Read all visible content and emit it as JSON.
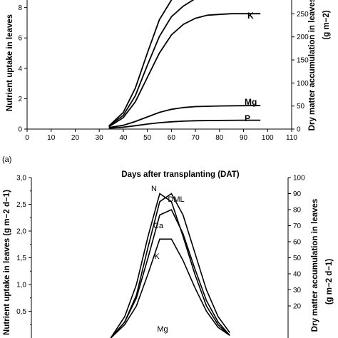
{
  "chart_data": [
    {
      "panel": "a",
      "type": "line",
      "panel_label": "(a)",
      "xlabel": "Days after transplanting (DAT)",
      "ylabel_left": "Nutrient uptake in leaves",
      "ylabel_right": "Dry matter accumulation in leaves",
      "ylabel_right_unit": "(g m−2)",
      "xlim": [
        0,
        110
      ],
      "ylim_left": [
        0,
        8.5
      ],
      "ylim_right": [
        0,
        280
      ],
      "x_ticks": [
        "0",
        "10",
        "20",
        "30",
        "40",
        "50",
        "60",
        "70",
        "80",
        "90",
        "100",
        "110"
      ],
      "y_ticks_left": [
        "0",
        "2",
        "4",
        "6",
        "8"
      ],
      "y_ticks_right": [
        "0",
        "50",
        "100",
        "150",
        "200",
        "250"
      ],
      "series": [
        {
          "label": "",
          "x": [
            34,
            40,
            45,
            50,
            55,
            60,
            62
          ],
          "y": [
            0.2,
            1.1,
            2.7,
            5.0,
            7.2,
            8.5,
            9.0
          ]
        },
        {
          "label": "",
          "x": [
            34,
            40,
            45,
            50,
            55,
            60,
            65,
            70,
            72
          ],
          "y": [
            0.2,
            0.9,
            2.2,
            4.2,
            6.1,
            7.4,
            8.1,
            8.6,
            8.9
          ]
        },
        {
          "label": "K",
          "x": [
            34,
            40,
            45,
            50,
            55,
            60,
            65,
            70,
            75,
            80,
            85,
            90,
            97
          ],
          "y": [
            0.15,
            0.75,
            1.8,
            3.4,
            5.0,
            6.2,
            6.9,
            7.3,
            7.5,
            7.55,
            7.6,
            7.6,
            7.6
          ]
        },
        {
          "label": "Mg",
          "x": [
            34,
            40,
            45,
            50,
            55,
            60,
            65,
            70,
            80,
            90,
            97
          ],
          "y": [
            0.1,
            0.25,
            0.5,
            0.8,
            1.1,
            1.3,
            1.42,
            1.48,
            1.52,
            1.54,
            1.55
          ]
        },
        {
          "label": "P",
          "x": [
            34,
            40,
            45,
            50,
            55,
            60,
            65,
            70,
            80,
            90,
            97
          ],
          "y": [
            0.05,
            0.12,
            0.22,
            0.33,
            0.42,
            0.48,
            0.52,
            0.55,
            0.57,
            0.58,
            0.58
          ]
        }
      ]
    },
    {
      "panel": "b",
      "type": "line",
      "ylabel_left": "Nutrient uptake in leaves (g m−2 d−1)",
      "ylabel_right": "Dry matter accumulation in leaves",
      "ylabel_right_unit": "(g m−2 d−1)",
      "ylim_left": [
        0,
        3.0
      ],
      "ylim_right": [
        0,
        100
      ],
      "y_ticks_left": [
        "0,5",
        "1,0",
        "1,5",
        "2,0",
        "2,5",
        "3,0"
      ],
      "y_ticks_right": [
        "20",
        "30",
        "40",
        "50",
        "60",
        "70",
        "80",
        "90",
        "100"
      ],
      "series": [
        {
          "label": "N",
          "x": [
            34,
            40,
            45,
            50,
            55,
            60,
            65,
            70,
            75,
            80,
            85
          ],
          "y": [
            0.0,
            0.4,
            1.0,
            1.9,
            2.7,
            2.55,
            1.9,
            1.2,
            0.6,
            0.25,
            0.05
          ]
        },
        {
          "label": "DML",
          "x": [
            34,
            40,
            45,
            50,
            55,
            60,
            65,
            70,
            75,
            80,
            85
          ],
          "y": [
            0.0,
            0.3,
            0.8,
            1.7,
            2.55,
            2.7,
            2.3,
            1.6,
            0.9,
            0.4,
            0.1
          ]
        },
        {
          "label": "Ca",
          "x": [
            34,
            40,
            45,
            50,
            55,
            60,
            65,
            70,
            75,
            80,
            85
          ],
          "y": [
            0.0,
            0.3,
            0.75,
            1.5,
            2.3,
            2.4,
            1.95,
            1.3,
            0.7,
            0.3,
            0.05
          ]
        },
        {
          "label": "K",
          "x": [
            34,
            40,
            45,
            50,
            55,
            60,
            65,
            70,
            75,
            80,
            85
          ],
          "y": [
            0.0,
            0.25,
            0.6,
            1.2,
            1.85,
            1.85,
            1.45,
            0.95,
            0.5,
            0.2,
            0.05
          ]
        },
        {
          "label": "Mg",
          "x": [],
          "y": []
        }
      ]
    }
  ]
}
